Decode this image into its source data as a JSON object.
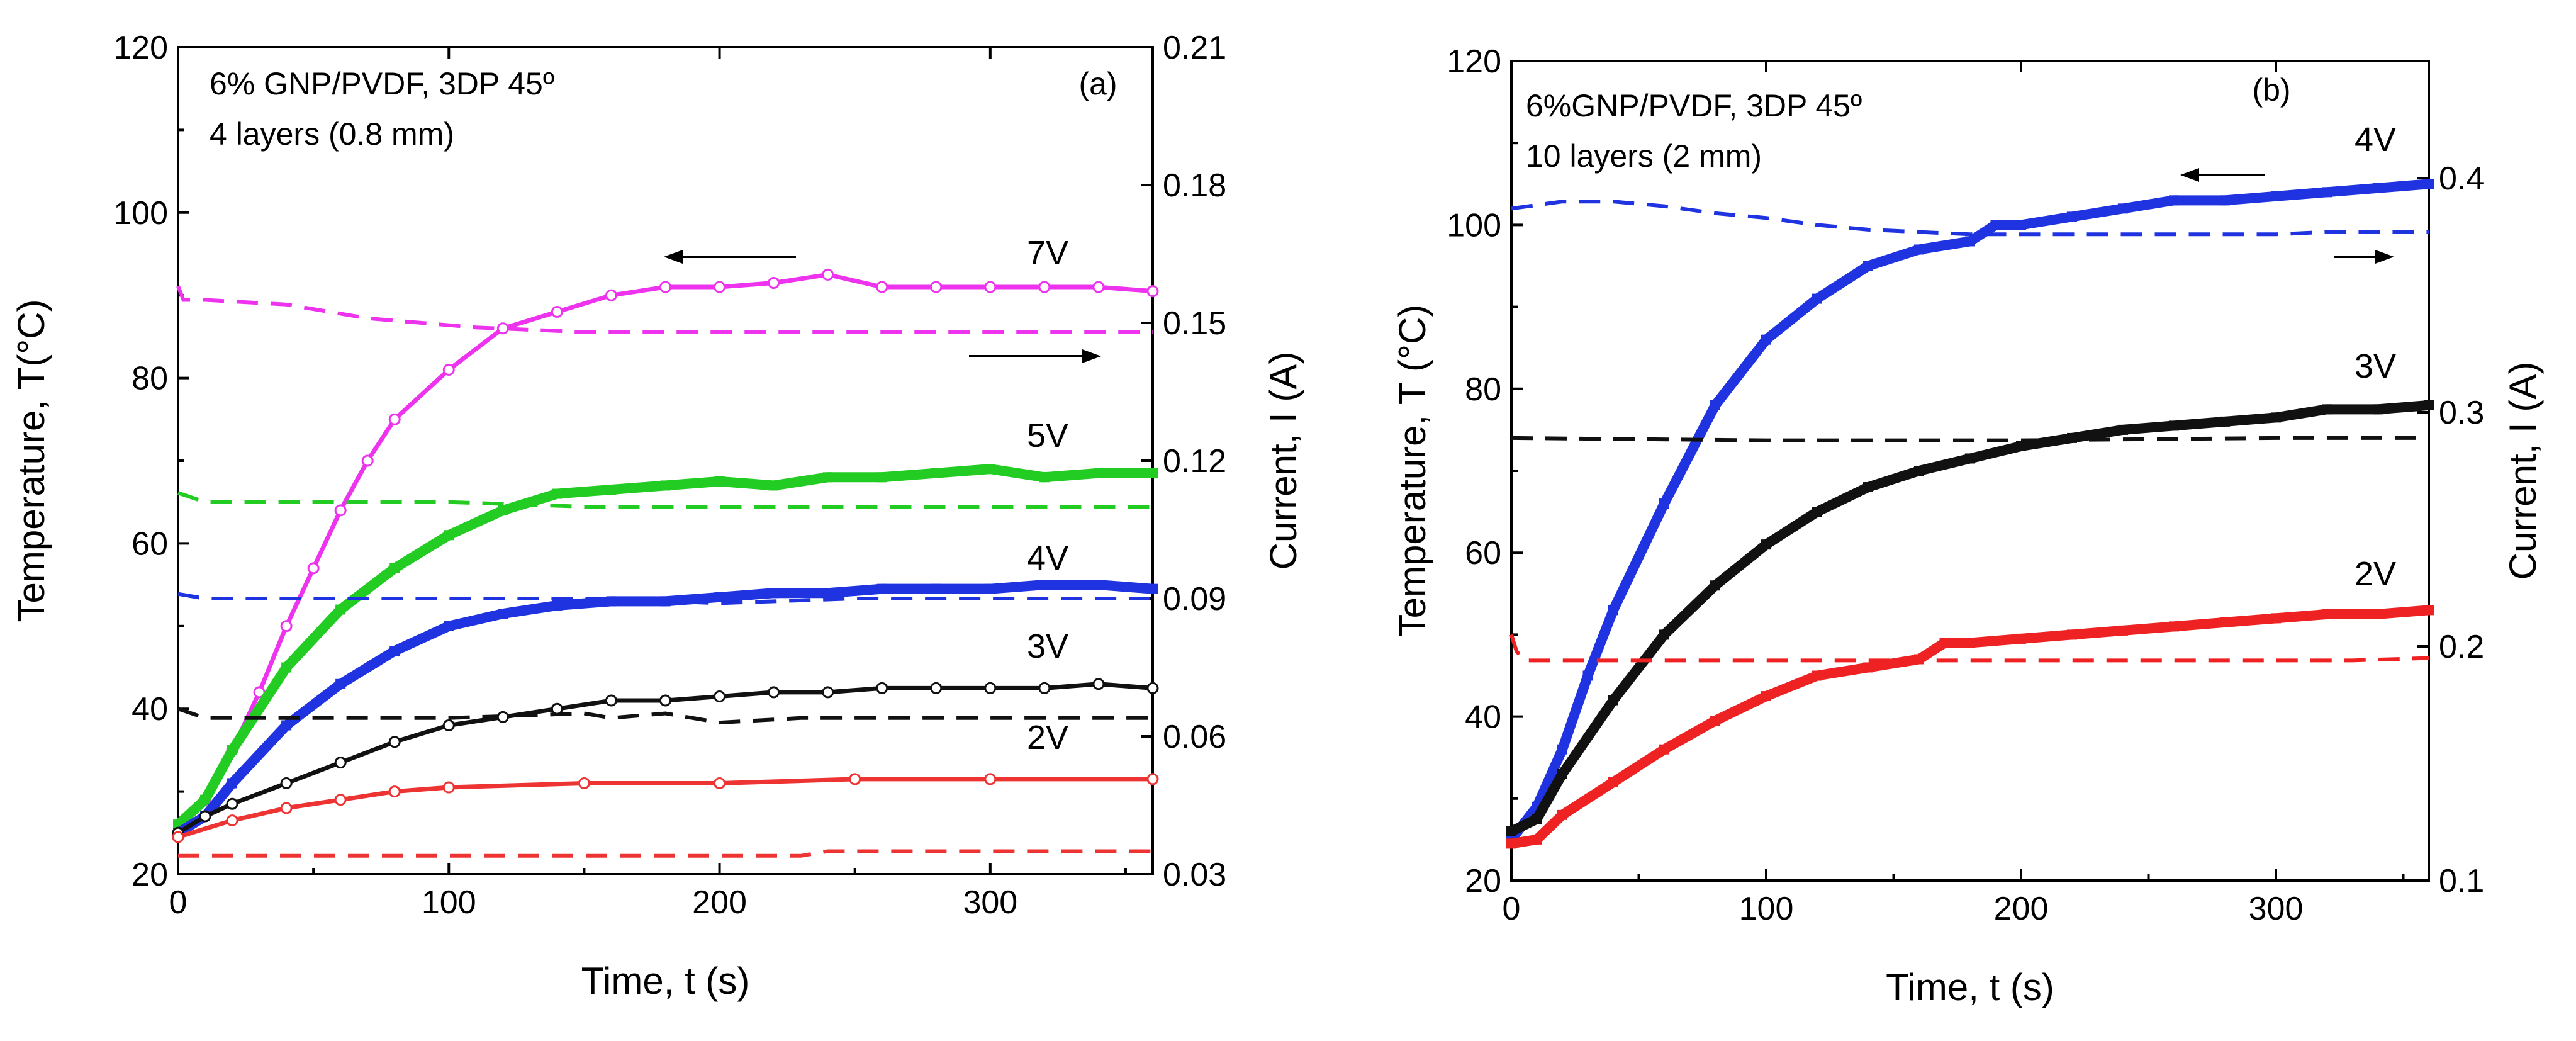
{
  "chart_data": [
    {
      "type": "line",
      "panel_label": "(a)",
      "xlabel": "Time, t (s)",
      "ylabel": "Temperature, T(°C)",
      "y2label": "Current, I (A)",
      "xlim": [
        0,
        360
      ],
      "ylim": [
        20,
        120
      ],
      "y2lim": [
        0.03,
        0.21
      ],
      "xticks": [
        0,
        100,
        200,
        300
      ],
      "yticks": [
        20,
        40,
        60,
        80,
        100,
        120
      ],
      "y2ticks": [
        0.03,
        0.06,
        0.09,
        0.12,
        0.15,
        0.18,
        0.21
      ],
      "y2tick_labels": [
        "0.03",
        "0.06",
        "0.09",
        "0.12",
        "0.15",
        "0.18",
        "0.21"
      ],
      "annotations": [
        "6% GNP/PVDF, 3DP 45º",
        "4 layers (0.8 mm)"
      ],
      "series": [
        {
          "name": "7V",
          "color": "#ee33ee",
          "marker": "open-circle",
          "temperature": {
            "x": [
              0,
              10,
              20,
              30,
              40,
              50,
              60,
              70,
              80,
              100,
              120,
              140,
              160,
              180,
              200,
              220,
              240,
              260,
              280,
              300,
              320,
              340,
              360
            ],
            "y": [
              25,
              29,
              35,
              42,
              50,
              57,
              64,
              70,
              75,
              81,
              86,
              88,
              90,
              91,
              91,
              91.5,
              92.5,
              91,
              91,
              91,
              91,
              91,
              90.5
            ]
          },
          "current": {
            "x": [
              0,
              2,
              10,
              40,
              70,
              110,
              150,
              200,
              250,
              300,
              360
            ],
            "y": [
              0.158,
              0.155,
              0.155,
              0.154,
              0.151,
              0.149,
              0.148,
              0.148,
              0.148,
              0.148,
              0.148
            ]
          }
        },
        {
          "name": "5V",
          "color": "#22cc22",
          "marker": "filled-square",
          "temperature": {
            "x": [
              0,
              10,
              20,
              40,
              60,
              80,
              100,
              120,
              140,
              160,
              180,
              200,
              220,
              240,
              260,
              280,
              300,
              320,
              340,
              360
            ],
            "y": [
              26,
              29,
              35,
              45,
              52,
              57,
              61,
              64,
              66,
              66.5,
              67,
              67.5,
              67,
              68,
              68,
              68.5,
              69,
              68,
              68.5,
              68.5
            ]
          },
          "current": {
            "x": [
              0,
              10,
              100,
              150,
              200,
              360
            ],
            "y": [
              0.113,
              0.111,
              0.111,
              0.11,
              0.11,
              0.11
            ]
          }
        },
        {
          "name": "4V",
          "color": "#1f33e0",
          "marker": "filled-square",
          "temperature": {
            "x": [
              0,
              10,
              20,
              40,
              60,
              80,
              100,
              120,
              140,
              160,
              180,
              200,
              220,
              240,
              260,
              280,
              300,
              320,
              340,
              360
            ],
            "y": [
              25,
              27,
              31,
              38,
              43,
              47,
              50,
              51.5,
              52.5,
              53,
              53,
              53.5,
              54,
              54,
              54.5,
              54.5,
              54.5,
              55,
              55,
              54.5
            ]
          },
          "current": {
            "x": [
              0,
              10,
              100,
              150,
              200,
              250,
              300,
              360
            ],
            "y": [
              0.091,
              0.09,
              0.09,
              0.09,
              0.089,
              0.09,
              0.09,
              0.09
            ]
          }
        },
        {
          "name": "3V",
          "color": "#111111",
          "marker": "open-circle",
          "temperature": {
            "x": [
              0,
              10,
              20,
              40,
              60,
              80,
              100,
              120,
              140,
              160,
              180,
              200,
              220,
              240,
              260,
              280,
              300,
              320,
              340,
              360
            ],
            "y": [
              25,
              27,
              28.5,
              31,
              33.5,
              36,
              38,
              39,
              40,
              41,
              41,
              41.5,
              42,
              42,
              42.5,
              42.5,
              42.5,
              42.5,
              43,
              42.5
            ]
          },
          "current": {
            "x": [
              0,
              10,
              50,
              100,
              150,
              160,
              180,
              200,
              230,
              280,
              360
            ],
            "y": [
              0.066,
              0.064,
              0.064,
              0.064,
              0.065,
              0.064,
              0.065,
              0.063,
              0.064,
              0.064,
              0.064
            ]
          }
        },
        {
          "name": "2V",
          "color": "#ee3333",
          "marker": "open-circle",
          "temperature": {
            "x": [
              0,
              20,
              40,
              60,
              80,
              100,
              150,
              200,
              250,
              300,
              360
            ],
            "y": [
              24.5,
              26.5,
              28,
              29,
              30,
              30.5,
              31,
              31,
              31.5,
              31.5,
              31.5
            ]
          },
          "current": {
            "x": [
              0,
              100,
              200,
              230,
              240,
              300,
              360
            ],
            "y": [
              0.034,
              0.034,
              0.034,
              0.034,
              0.035,
              0.035,
              0.035
            ]
          }
        }
      ]
    },
    {
      "type": "line",
      "panel_label": "(b)",
      "xlabel": "Time, t (s)",
      "ylabel": "Temperature, T (°C)",
      "y2label": "Current, I (A)",
      "xlim": [
        0,
        360
      ],
      "ylim": [
        20,
        120
      ],
      "y2lim": [
        0.1,
        0.45
      ],
      "xticks": [
        0,
        100,
        200,
        300
      ],
      "yticks": [
        20,
        40,
        60,
        80,
        100,
        120
      ],
      "y2ticks": [
        0.1,
        0.2,
        0.3,
        0.4
      ],
      "y2tick_labels": [
        "0.1",
        "0.2",
        "0.3",
        "0.4"
      ],
      "annotations": [
        "6%GNP/PVDF, 3DP 45º",
        "10 layers (2 mm)"
      ],
      "series": [
        {
          "name": "4V",
          "color": "#1f33e0",
          "marker": "filled-square",
          "temperature": {
            "x": [
              0,
              10,
              20,
              30,
              40,
              60,
              80,
              100,
              120,
              140,
              160,
              180,
              190,
              200,
              220,
              240,
              260,
              280,
              300,
              320,
              340,
              360
            ],
            "y": [
              25,
              29,
              36,
              45,
              53,
              66,
              78,
              86,
              91,
              95,
              97,
              98,
              100,
              100,
              101,
              102,
              103,
              103,
              103.5,
              104,
              104.5,
              105
            ]
          },
          "current": {
            "x": [
              0,
              20,
              40,
              60,
              80,
              100,
              120,
              140,
              160,
              180,
              200,
              250,
              300,
              320,
              360
            ],
            "y": [
              0.387,
              0.39,
              0.39,
              0.388,
              0.385,
              0.383,
              0.38,
              0.378,
              0.377,
              0.376,
              0.376,
              0.376,
              0.376,
              0.377,
              0.377
            ]
          }
        },
        {
          "name": "3V",
          "color": "#111111",
          "marker": "filled-square",
          "temperature": {
            "x": [
              0,
              10,
              20,
              40,
              60,
              80,
              100,
              120,
              140,
              160,
              180,
              200,
              220,
              240,
              260,
              280,
              300,
              320,
              340,
              360
            ],
            "y": [
              26,
              27.5,
              33,
              42,
              50,
              56,
              61,
              65,
              68,
              70,
              71.5,
              73,
              74,
              75,
              75.5,
              76,
              76.5,
              77.5,
              77.5,
              78
            ]
          },
          "current": {
            "x": [
              0,
              100,
              200,
              300,
              360
            ],
            "y": [
              0.289,
              0.288,
              0.288,
              0.289,
              0.289
            ]
          }
        },
        {
          "name": "2V",
          "color": "#ee2222",
          "marker": "filled-square",
          "temperature": {
            "x": [
              0,
              10,
              20,
              40,
              60,
              80,
              100,
              120,
              140,
              160,
              170,
              180,
              200,
              220,
              240,
              260,
              280,
              300,
              320,
              340,
              360
            ],
            "y": [
              24.5,
              25,
              28,
              32,
              36,
              39.5,
              42.5,
              45,
              46,
              47,
              49,
              49,
              49.5,
              50,
              50.5,
              51,
              51.5,
              52,
              52.5,
              52.5,
              53
            ]
          },
          "current": {
            "x": [
              0,
              2,
              5,
              50,
              100,
              200,
              300,
              330,
              360
            ],
            "y": [
              0.205,
              0.198,
              0.194,
              0.194,
              0.194,
              0.194,
              0.194,
              0.194,
              0.195
            ]
          }
        }
      ]
    }
  ]
}
